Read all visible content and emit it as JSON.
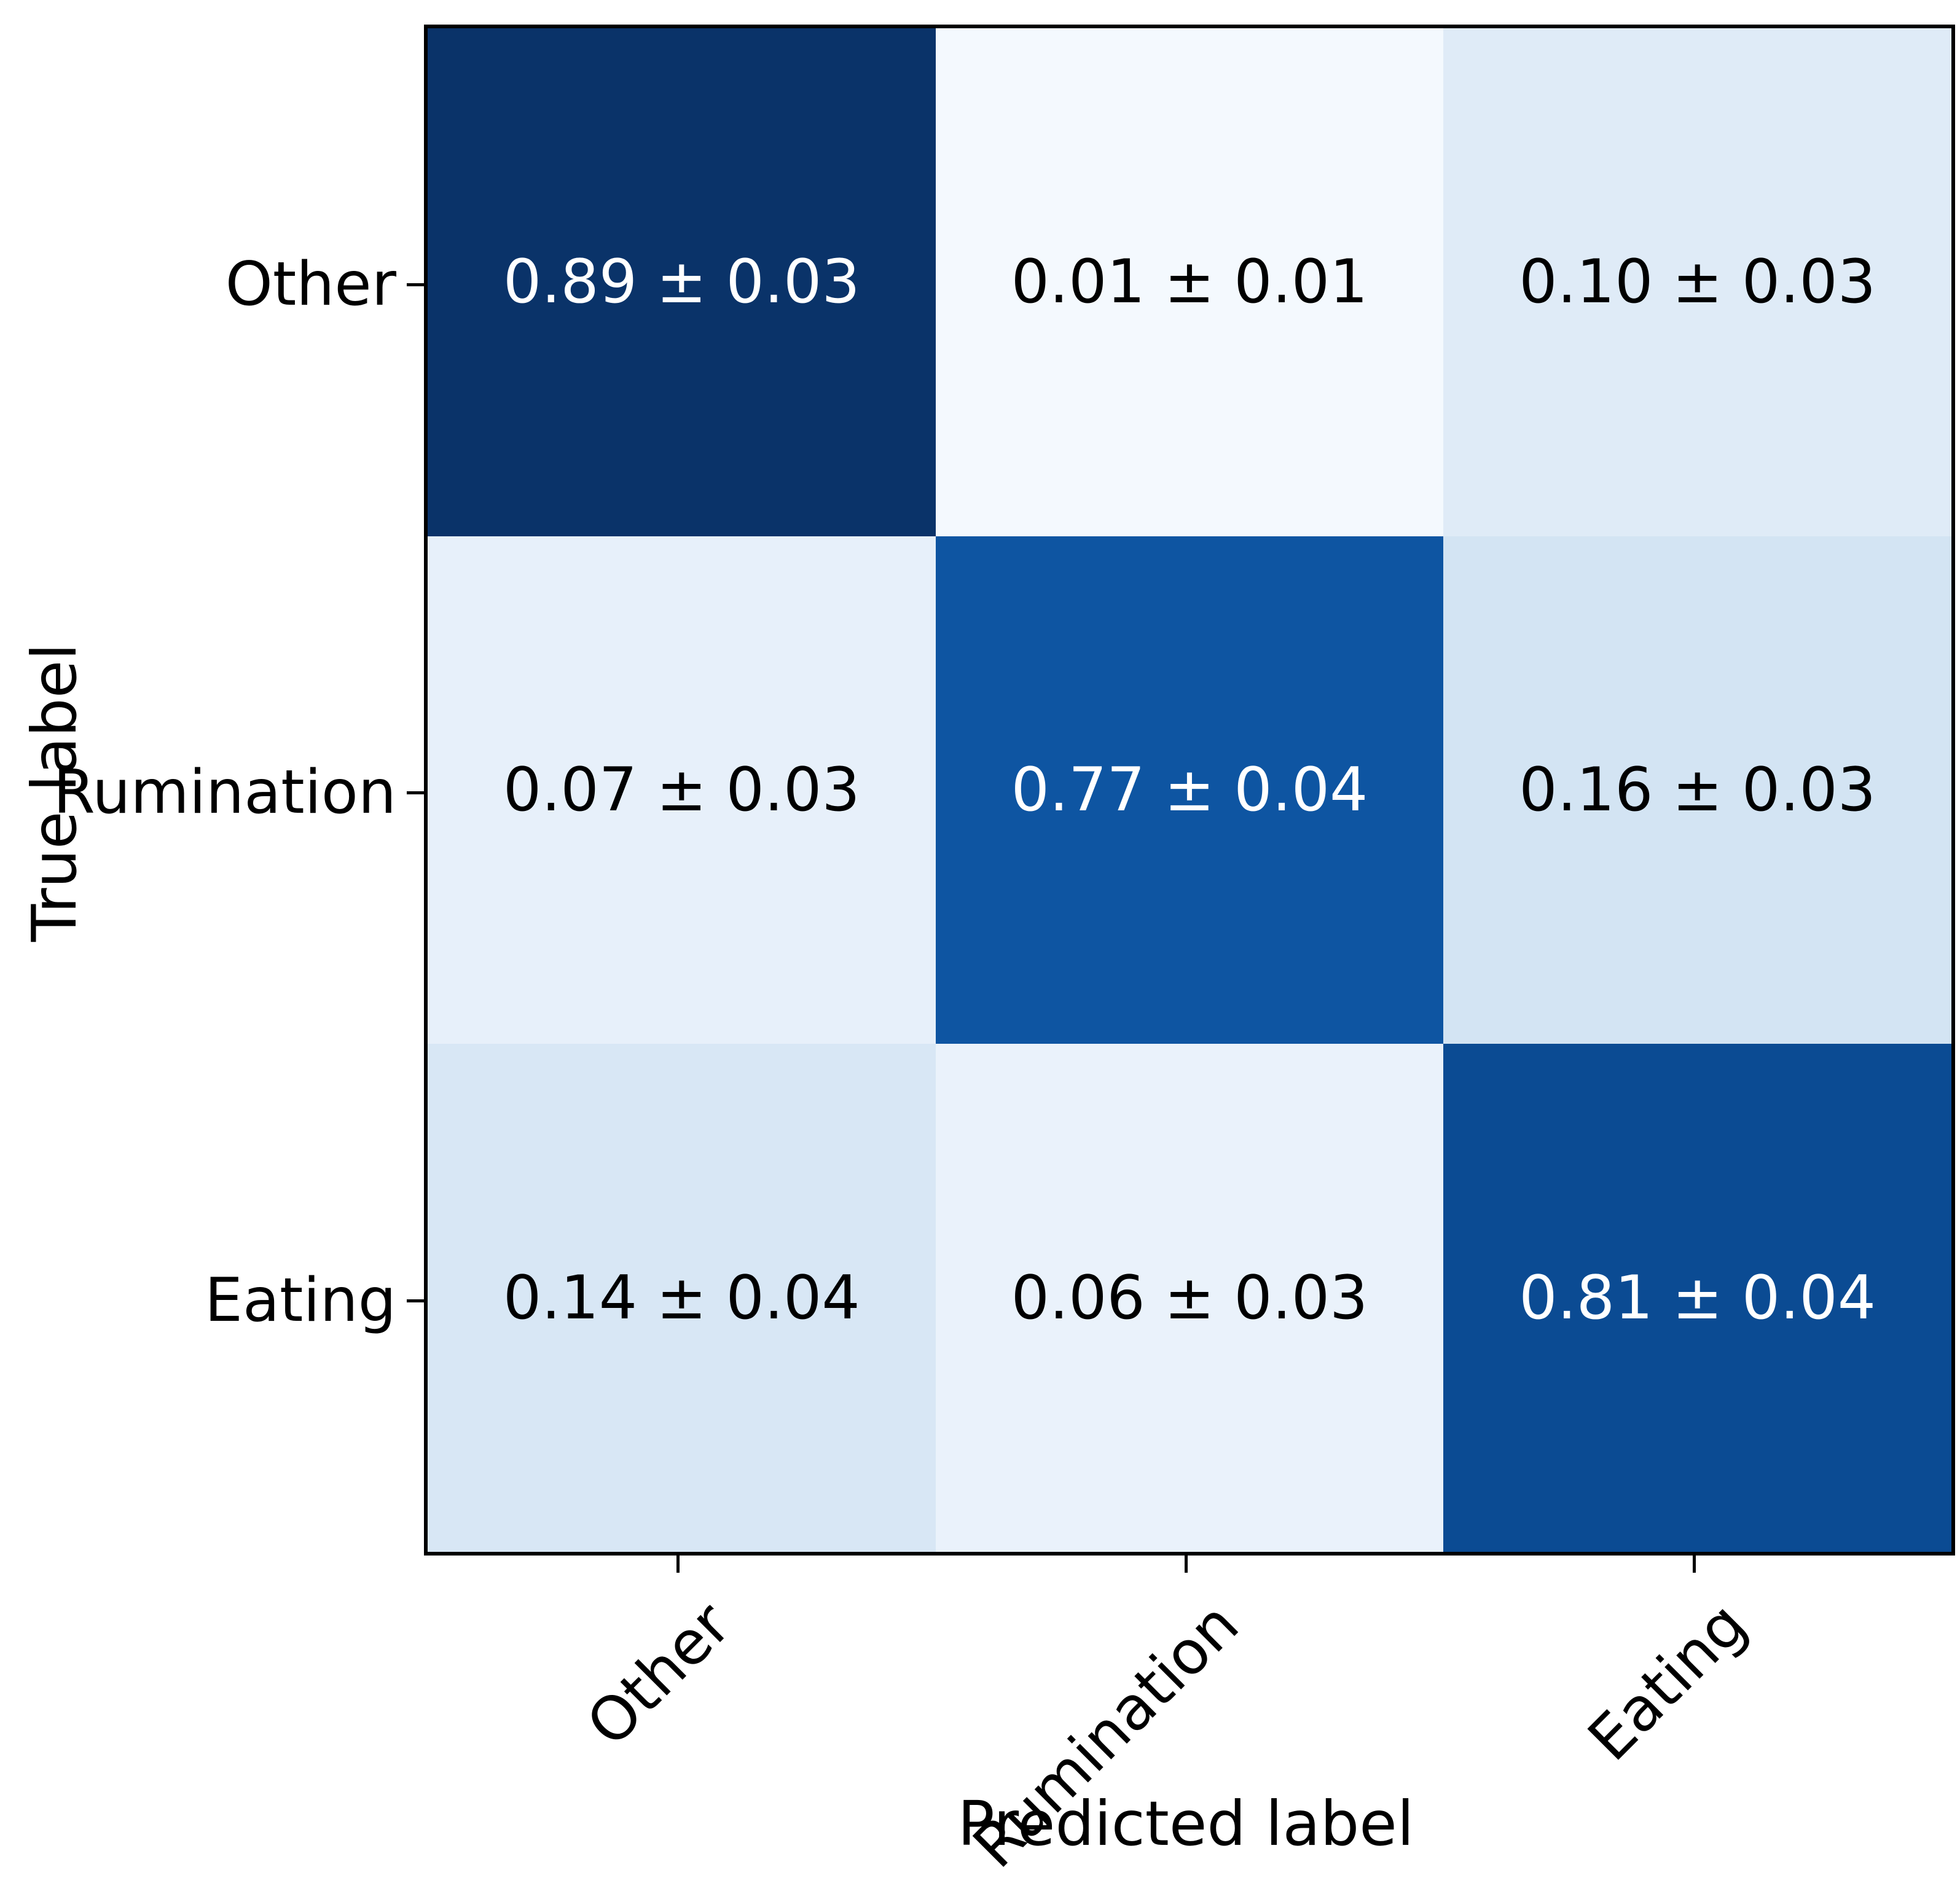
{
  "figure": {
    "background_color": "#ffffff",
    "spine_color": "#000000"
  },
  "chart_data": {
    "type": "heatmap",
    "title": "",
    "xlabel": "Predicted label",
    "ylabel": "True label",
    "colormap": "Blues",
    "x_tick_labels": [
      "Other",
      "Rumination",
      "Eating"
    ],
    "y_tick_labels": [
      "Other",
      "Rumination",
      "Eating"
    ],
    "value_range": [
      0.01,
      0.89
    ],
    "grid": false,
    "legend": "none",
    "series": [
      {
        "name": "Other",
        "values": [
          0.89,
          0.01,
          0.1
        ],
        "stds": [
          0.03,
          0.01,
          0.03
        ]
      },
      {
        "name": "Rumination",
        "values": [
          0.07,
          0.77,
          0.16
        ],
        "stds": [
          0.03,
          0.04,
          0.03
        ]
      },
      {
        "name": "Eating",
        "values": [
          0.14,
          0.06,
          0.81
        ],
        "stds": [
          0.04,
          0.03,
          0.04
        ]
      }
    ],
    "cells": [
      [
        {
          "label": "0.89 ± 0.03",
          "value": 0.89,
          "std": 0.03,
          "bg": "#0a3369",
          "fg": "#ffffff"
        },
        {
          "label": "0.01 ± 0.01",
          "value": 0.01,
          "std": 0.01,
          "bg": "#f4f9fe",
          "fg": "#000000"
        },
        {
          "label": "0.10 ± 0.03",
          "value": 0.1,
          "std": 0.03,
          "bg": "#dfebf7",
          "fg": "#000000"
        }
      ],
      [
        {
          "label": "0.07 ± 0.03",
          "value": 0.07,
          "std": 0.03,
          "bg": "#e7f0fa",
          "fg": "#000000"
        },
        {
          "label": "0.77 ± 0.04",
          "value": 0.77,
          "std": 0.04,
          "bg": "#0e55a2",
          "fg": "#ffffff"
        },
        {
          "label": "0.16 ± 0.03",
          "value": 0.16,
          "std": 0.03,
          "bg": "#d3e4f3",
          "fg": "#000000"
        }
      ],
      [
        {
          "label": "0.14 ± 0.04",
          "value": 0.14,
          "std": 0.04,
          "bg": "#d8e7f5",
          "fg": "#000000"
        },
        {
          "label": "0.06 ± 0.03",
          "value": 0.06,
          "std": 0.03,
          "bg": "#eaf2fb",
          "fg": "#000000"
        },
        {
          "label": "0.81 ± 0.04",
          "value": 0.81,
          "std": 0.04,
          "bg": "#0b4b93",
          "fg": "#ffffff"
        }
      ]
    ]
  }
}
